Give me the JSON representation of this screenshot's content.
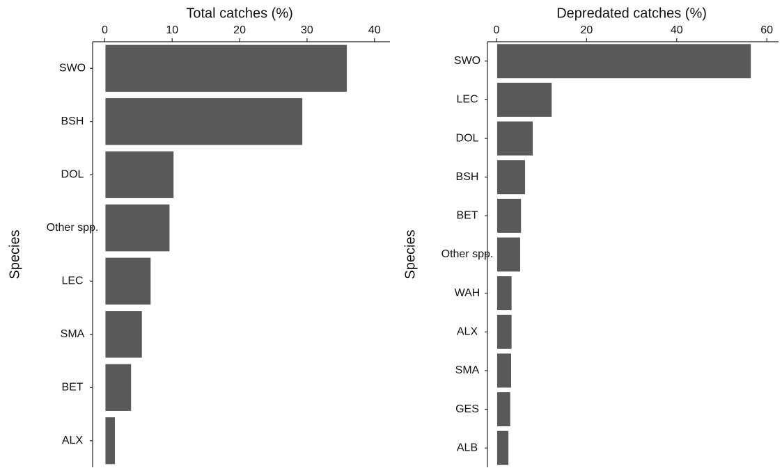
{
  "chart_data": [
    {
      "type": "bar",
      "orientation": "horizontal",
      "xlabel": "Total catches (%)",
      "ylabel": "Species",
      "categories": [
        "SWO",
        "BSH",
        "DOL",
        "Other spp.",
        "LEC",
        "SMA",
        "BET",
        "ALX"
      ],
      "values": [
        35.8,
        29.2,
        10.1,
        9.5,
        6.7,
        5.4,
        3.8,
        1.4
      ],
      "color": "#595959",
      "xlim": [
        -1.8,
        42.3
      ],
      "xticks": [
        0,
        10,
        20,
        30,
        40
      ]
    },
    {
      "type": "bar",
      "orientation": "horizontal",
      "xlabel": "Depredated catches (%)",
      "ylabel": "Species",
      "categories": [
        "SWO",
        "LEC",
        "DOL",
        "BSH",
        "BET",
        "Other spp.",
        "WAH",
        "ALX",
        "SMA",
        "GES",
        "ALB"
      ],
      "values": [
        56.3,
        12.1,
        7.9,
        6.2,
        5.3,
        5.1,
        3.2,
        3.2,
        3.1,
        2.9,
        2.5
      ],
      "color": "#595959",
      "xlim": [
        -2,
        62.6
      ],
      "xticks": [
        0,
        20,
        40,
        60
      ]
    }
  ]
}
